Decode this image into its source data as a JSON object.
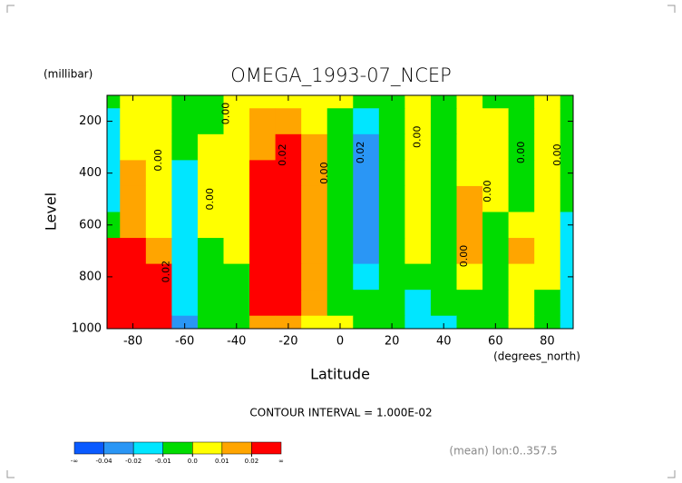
{
  "chart_data": {
    "type": "contour",
    "title": "OMEGA_1993-07_NCEP",
    "y_units": "(millibar)",
    "ylabel": "Level",
    "xlabel": "Latitude",
    "x_units": "(degrees_north)",
    "subtitle": "CONTOUR INTERVAL = 1.000E-02",
    "note": "(mean) lon:0..357.5",
    "x": [
      -90,
      -80,
      -70,
      -60,
      -50,
      -40,
      -30,
      -20,
      -10,
      0,
      10,
      20,
      30,
      40,
      50,
      60,
      70,
      80,
      90
    ],
    "y": [
      100,
      200,
      300,
      400,
      500,
      600,
      700,
      800,
      900,
      1000
    ],
    "z": [
      [
        -0.005,
        0.005,
        0.005,
        -0.005,
        -0.005,
        0.005,
        0.005,
        0.005,
        0.005,
        0.005,
        -0.005,
        -0.005,
        0.005,
        -0.005,
        0.005,
        -0.005,
        -0.005,
        0.005,
        -0.005
      ],
      [
        -0.015,
        0.005,
        0.005,
        -0.005,
        -0.005,
        0.005,
        0.015,
        0.015,
        0.005,
        -0.005,
        -0.015,
        -0.005,
        0.005,
        -0.005,
        0.005,
        0.005,
        -0.005,
        0.005,
        -0.005
      ],
      [
        -0.015,
        0.005,
        0.005,
        -0.005,
        0.005,
        0.005,
        0.015,
        0.03,
        0.015,
        -0.005,
        -0.03,
        -0.005,
        0.005,
        -0.005,
        0.005,
        0.005,
        -0.005,
        0.005,
        -0.005
      ],
      [
        -0.015,
        0.015,
        0.005,
        -0.015,
        0.005,
        0.005,
        0.03,
        0.03,
        0.015,
        -0.005,
        -0.03,
        -0.005,
        0.005,
        -0.005,
        0.005,
        0.005,
        -0.005,
        0.005,
        -0.005
      ],
      [
        -0.015,
        0.015,
        0.005,
        -0.015,
        0.005,
        0.005,
        0.03,
        0.03,
        0.015,
        -0.005,
        -0.03,
        -0.005,
        0.005,
        -0.005,
        0.015,
        0.005,
        -0.005,
        0.005,
        -0.005
      ],
      [
        -0.005,
        0.015,
        0.005,
        -0.015,
        0.005,
        0.005,
        0.03,
        0.03,
        0.015,
        -0.005,
        -0.03,
        -0.005,
        0.005,
        -0.005,
        0.015,
        -0.005,
        0.005,
        0.005,
        -0.015
      ],
      [
        0.03,
        0.03,
        0.015,
        -0.015,
        -0.005,
        0.005,
        0.03,
        0.03,
        0.015,
        -0.005,
        -0.03,
        -0.005,
        0.005,
        -0.005,
        0.015,
        -0.005,
        0.015,
        0.005,
        -0.015
      ],
      [
        0.05,
        0.05,
        0.03,
        -0.015,
        -0.005,
        -0.005,
        0.03,
        0.03,
        0.015,
        -0.005,
        -0.015,
        -0.005,
        -0.005,
        -0.005,
        0.005,
        -0.005,
        0.005,
        0.005,
        -0.015
      ],
      [
        0.05,
        0.05,
        0.03,
        -0.015,
        -0.005,
        -0.005,
        0.03,
        0.03,
        0.015,
        -0.005,
        -0.005,
        -0.005,
        -0.015,
        -0.005,
        -0.005,
        -0.005,
        0.005,
        -0.005,
        -0.015
      ],
      [
        0.05,
        0.05,
        0.03,
        -0.03,
        -0.005,
        -0.005,
        0.015,
        0.015,
        0.005,
        0.005,
        -0.005,
        -0.005,
        -0.015,
        -0.015,
        -0.005,
        -0.005,
        0.005,
        -0.005,
        -0.015
      ]
    ],
    "xlim": [
      -90,
      90
    ],
    "ylim": [
      1000,
      100
    ],
    "xticks": [
      -80,
      -60,
      -40,
      -20,
      0,
      20,
      40,
      60,
      80
    ],
    "yticks": [
      200,
      400,
      600,
      800,
      1000
    ],
    "levels": [
      -0.04,
      -0.02,
      -0.01,
      {
        "value": 0,
        "label": "0.0"
      },
      0.01,
      0.02
    ],
    "level_colors": [
      "#0a5aff",
      "#2a96f5",
      "#00e6ff",
      "#00dc00",
      "#ffff00",
      "#ffa500",
      "#ff0000"
    ],
    "colorbar_ends": [
      "-∞",
      "∞"
    ],
    "contour_labels": [
      {
        "x": -70,
        "y": 350,
        "text": "0.00"
      },
      {
        "x": -44,
        "y": 170,
        "text": "0.00"
      },
      {
        "x": -50,
        "y": 500,
        "text": "0.00"
      },
      {
        "x": -67,
        "y": 780,
        "text": "0.02"
      },
      {
        "x": -22,
        "y": 330,
        "text": "0.02"
      },
      {
        "x": -6,
        "y": 400,
        "text": "0.00"
      },
      {
        "x": 8,
        "y": 320,
        "text": "0.02"
      },
      {
        "x": 30,
        "y": 260,
        "text": "0.00"
      },
      {
        "x": 48,
        "y": 720,
        "text": "0.00"
      },
      {
        "x": 57,
        "y": 470,
        "text": "0.00"
      },
      {
        "x": 70,
        "y": 320,
        "text": "0.00"
      },
      {
        "x": 84,
        "y": 330,
        "text": "0.00"
      }
    ]
  }
}
